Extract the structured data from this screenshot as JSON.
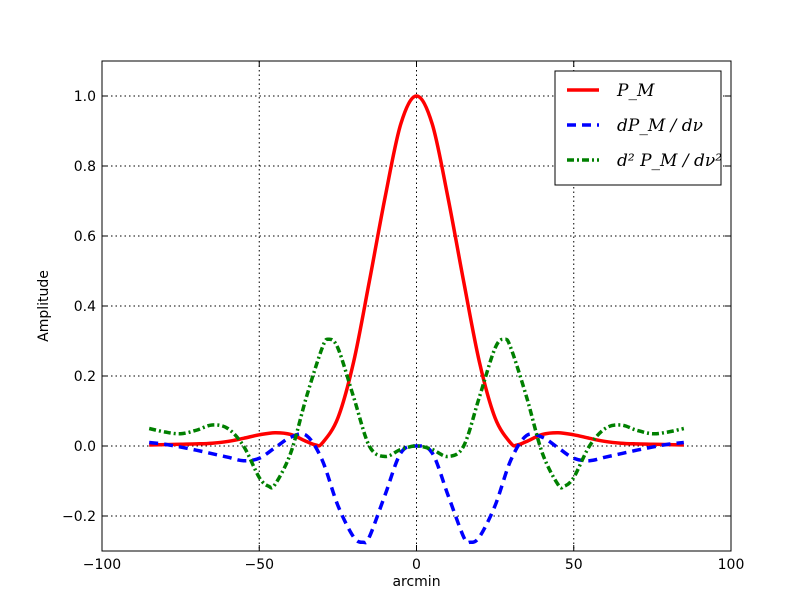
{
  "chart_data": {
    "type": "line",
    "title": "",
    "xlabel": "arcmin",
    "ylabel": "Amplitude",
    "xlim": [
      -100,
      100
    ],
    "ylim": [
      -0.3,
      1.1
    ],
    "xticks": [
      -100,
      -50,
      0,
      50,
      100
    ],
    "xtick_labels": [
      "−100",
      "−50",
      "0",
      "50",
      "100"
    ],
    "yticks": [
      -0.2,
      0.0,
      0.2,
      0.4,
      0.6,
      0.8,
      1.0
    ],
    "ytick_labels": [
      "−0.2",
      "0.0",
      "0.2",
      "0.4",
      "0.6",
      "0.8",
      "1.0"
    ],
    "grid": true,
    "legend_position": "top-right",
    "series": [
      {
        "name": "P_M",
        "legend_label": "P_M",
        "color": "#ff0000",
        "style": "solid",
        "x": [
          -85,
          -80,
          -75,
          -70,
          -65,
          -60,
          -55,
          -50,
          -45,
          -40,
          -35,
          -32,
          -30,
          -25,
          -20,
          -15,
          -10,
          -5,
          0,
          5,
          10,
          15,
          20,
          25,
          30,
          32,
          35,
          40,
          45,
          50,
          55,
          60,
          65,
          70,
          75,
          80,
          85
        ],
        "y": [
          0.003,
          0.004,
          0.005,
          0.006,
          0.008,
          0.013,
          0.022,
          0.032,
          0.038,
          0.033,
          0.013,
          0.003,
          0.008,
          0.08,
          0.24,
          0.47,
          0.71,
          0.92,
          1.0,
          0.92,
          0.71,
          0.47,
          0.24,
          0.08,
          0.008,
          0.003,
          0.013,
          0.033,
          0.038,
          0.032,
          0.022,
          0.013,
          0.008,
          0.006,
          0.005,
          0.004,
          0.003
        ]
      },
      {
        "name": "dP_M/dnu",
        "legend_label": "dP_M / dν",
        "color": "#0000ff",
        "style": "dashed",
        "x": [
          -85,
          -80,
          -75,
          -70,
          -65,
          -60,
          -55,
          -50,
          -45,
          -40,
          -35,
          -30,
          -25,
          -20,
          -17,
          -15,
          -10,
          -5,
          0,
          5,
          10,
          15,
          17,
          20,
          25,
          30,
          35,
          40,
          45,
          50,
          55,
          60,
          65,
          70,
          75,
          80,
          85
        ],
        "y": [
          0.01,
          0.005,
          -0.003,
          -0.012,
          -0.022,
          -0.032,
          -0.042,
          -0.035,
          -0.005,
          0.025,
          0.03,
          -0.04,
          -0.17,
          -0.26,
          -0.275,
          -0.26,
          -0.14,
          -0.02,
          0.0,
          -0.02,
          -0.14,
          -0.26,
          -0.275,
          -0.26,
          -0.17,
          -0.04,
          0.03,
          0.025,
          -0.005,
          -0.035,
          -0.042,
          -0.032,
          -0.022,
          -0.012,
          -0.003,
          0.005,
          0.01
        ]
      },
      {
        "name": "d2P_M/dnu2",
        "legend_label": "d² P_M / dν²",
        "color": "#008000",
        "style": "dash-dot",
        "x": [
          -85,
          -80,
          -75,
          -70,
          -65,
          -60,
          -55,
          -50,
          -47,
          -45,
          -40,
          -35,
          -30,
          -28,
          -25,
          -20,
          -15,
          -10,
          -5,
          0,
          5,
          10,
          15,
          20,
          25,
          28,
          30,
          35,
          40,
          45,
          47,
          50,
          55,
          60,
          65,
          70,
          75,
          80,
          85
        ],
        "y": [
          0.05,
          0.04,
          0.035,
          0.045,
          0.06,
          0.05,
          0.0,
          -0.09,
          -0.115,
          -0.11,
          -0.02,
          0.14,
          0.28,
          0.305,
          0.28,
          0.14,
          0.0,
          -0.03,
          -0.01,
          0.0,
          -0.01,
          -0.03,
          0.0,
          0.14,
          0.28,
          0.305,
          0.28,
          0.14,
          -0.02,
          -0.11,
          -0.115,
          -0.09,
          0.0,
          0.05,
          0.06,
          0.045,
          0.035,
          0.04,
          0.05
        ]
      }
    ]
  }
}
